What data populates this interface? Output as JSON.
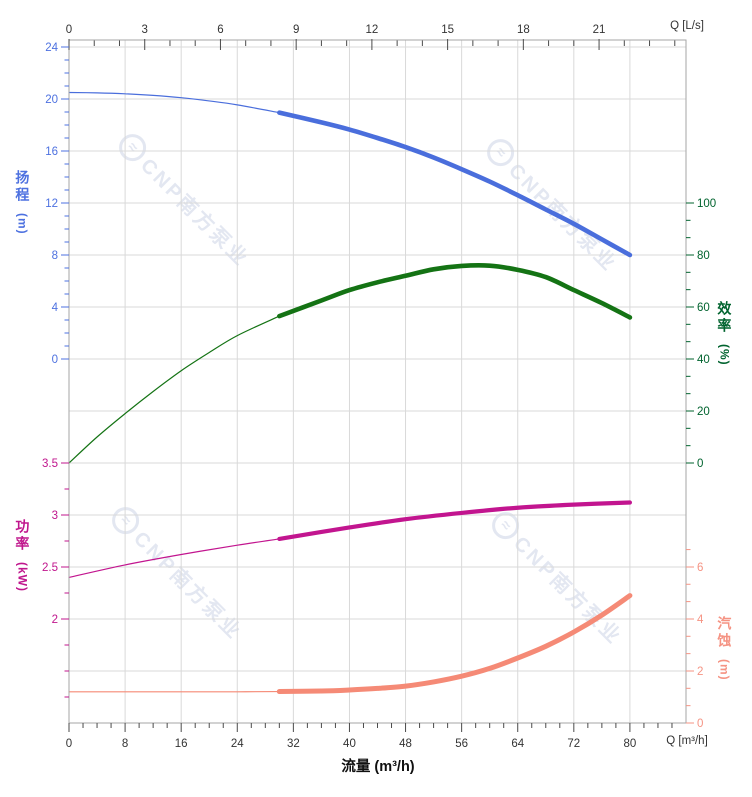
{
  "watermark": {
    "logo_glyph": "≈",
    "text": "CNP南方泵业"
  },
  "chart_data": {
    "type": "line",
    "grid": true,
    "x_axis": {
      "label_end": "Q [m³/h]",
      "title": "流量 (m³/h)",
      "range": [
        0,
        88
      ],
      "majors": [
        0,
        8,
        16,
        24,
        32,
        40,
        48,
        56,
        64,
        72,
        80
      ],
      "minor_step": 2
    },
    "x_axis_top": {
      "label_end": "Q [L/s]",
      "m3h_per_unit": 3.6,
      "majors": [
        0,
        3,
        6,
        9,
        12,
        15,
        18,
        21
      ],
      "minor_step": 1,
      "minor_max": 24
    },
    "y_axes": [
      {
        "id": "head",
        "name": "扬程",
        "unit": "(m)",
        "side": "left",
        "color": "#4d71e0",
        "majors": [
          24,
          20,
          16,
          12,
          8,
          4,
          0
        ],
        "minor_step": 1,
        "minor_range": [
          0,
          24
        ],
        "value_range": [
          0,
          24
        ]
      },
      {
        "id": "efficiency",
        "name": "效率",
        "unit": "(%)",
        "side": "right",
        "color": "#00632e",
        "majors": [
          100,
          80,
          60,
          40,
          20,
          0
        ],
        "minor_step": 6.667,
        "minor_range": [
          0,
          100
        ],
        "value_range": [
          0,
          100
        ]
      },
      {
        "id": "power",
        "name": "功率",
        "unit": "(kW)",
        "side": "left",
        "color": "#c0168d",
        "majors": [
          3.5,
          3,
          2.5,
          2
        ],
        "minor_step": 0.25,
        "minor_range": [
          1.25,
          3.5
        ],
        "value_range": [
          1,
          3.5
        ]
      },
      {
        "id": "npsh",
        "name": "汽蚀",
        "unit": "(m)",
        "side": "right",
        "color": "#f59383",
        "majors": [
          6,
          4,
          2,
          0
        ],
        "minor_step": 0.667,
        "minor_range": [
          0,
          6.7
        ],
        "value_range": [
          0,
          10
        ]
      }
    ],
    "series": [
      {
        "id": "head",
        "axis": "head",
        "color": "#4a6edc",
        "bold_from": 30,
        "points": [
          [
            0,
            20.5
          ],
          [
            4,
            20.47
          ],
          [
            8,
            20.4
          ],
          [
            12,
            20.28
          ],
          [
            16,
            20.1
          ],
          [
            20,
            19.85
          ],
          [
            24,
            19.55
          ],
          [
            30,
            18.95
          ],
          [
            36,
            18.2
          ],
          [
            40,
            17.65
          ],
          [
            44,
            17.0
          ],
          [
            48,
            16.3
          ],
          [
            52,
            15.5
          ],
          [
            56,
            14.6
          ],
          [
            60,
            13.65
          ],
          [
            64,
            12.6
          ],
          [
            68,
            11.5
          ],
          [
            72,
            10.4
          ],
          [
            76,
            9.2
          ],
          [
            80,
            8.0
          ]
        ]
      },
      {
        "id": "efficiency",
        "axis": "efficiency",
        "color": "#147314",
        "bold_from": 30,
        "points": [
          [
            0,
            0
          ],
          [
            4,
            10
          ],
          [
            8,
            19
          ],
          [
            12,
            27.5
          ],
          [
            16,
            35.5
          ],
          [
            20,
            42.5
          ],
          [
            24,
            49
          ],
          [
            30,
            56.5
          ],
          [
            36,
            62.5
          ],
          [
            40,
            66.5
          ],
          [
            44,
            69.5
          ],
          [
            48,
            72
          ],
          [
            52,
            74.5
          ],
          [
            56,
            75.8
          ],
          [
            60,
            75.9
          ],
          [
            64,
            74.3
          ],
          [
            68,
            71.5
          ],
          [
            72,
            66.5
          ],
          [
            76,
            61.5
          ],
          [
            80,
            56
          ]
        ]
      },
      {
        "id": "power",
        "axis": "power",
        "color": "#c2158f",
        "bold_from": 30,
        "points": [
          [
            0,
            2.4
          ],
          [
            8,
            2.52
          ],
          [
            16,
            2.62
          ],
          [
            24,
            2.71
          ],
          [
            30,
            2.77
          ],
          [
            40,
            2.88
          ],
          [
            48,
            2.96
          ],
          [
            56,
            3.02
          ],
          [
            64,
            3.07
          ],
          [
            72,
            3.1
          ],
          [
            80,
            3.12
          ]
        ]
      },
      {
        "id": "npsh",
        "axis": "npsh",
        "color": "#f58a76",
        "bold_from": 30,
        "points": [
          [
            0,
            1.2
          ],
          [
            8,
            1.2
          ],
          [
            16,
            1.2
          ],
          [
            24,
            1.2
          ],
          [
            30,
            1.21
          ],
          [
            36,
            1.23
          ],
          [
            40,
            1.27
          ],
          [
            44,
            1.33
          ],
          [
            48,
            1.42
          ],
          [
            52,
            1.58
          ],
          [
            56,
            1.8
          ],
          [
            60,
            2.1
          ],
          [
            64,
            2.5
          ],
          [
            68,
            2.95
          ],
          [
            72,
            3.5
          ],
          [
            76,
            4.15
          ],
          [
            80,
            4.9
          ]
        ]
      }
    ]
  }
}
